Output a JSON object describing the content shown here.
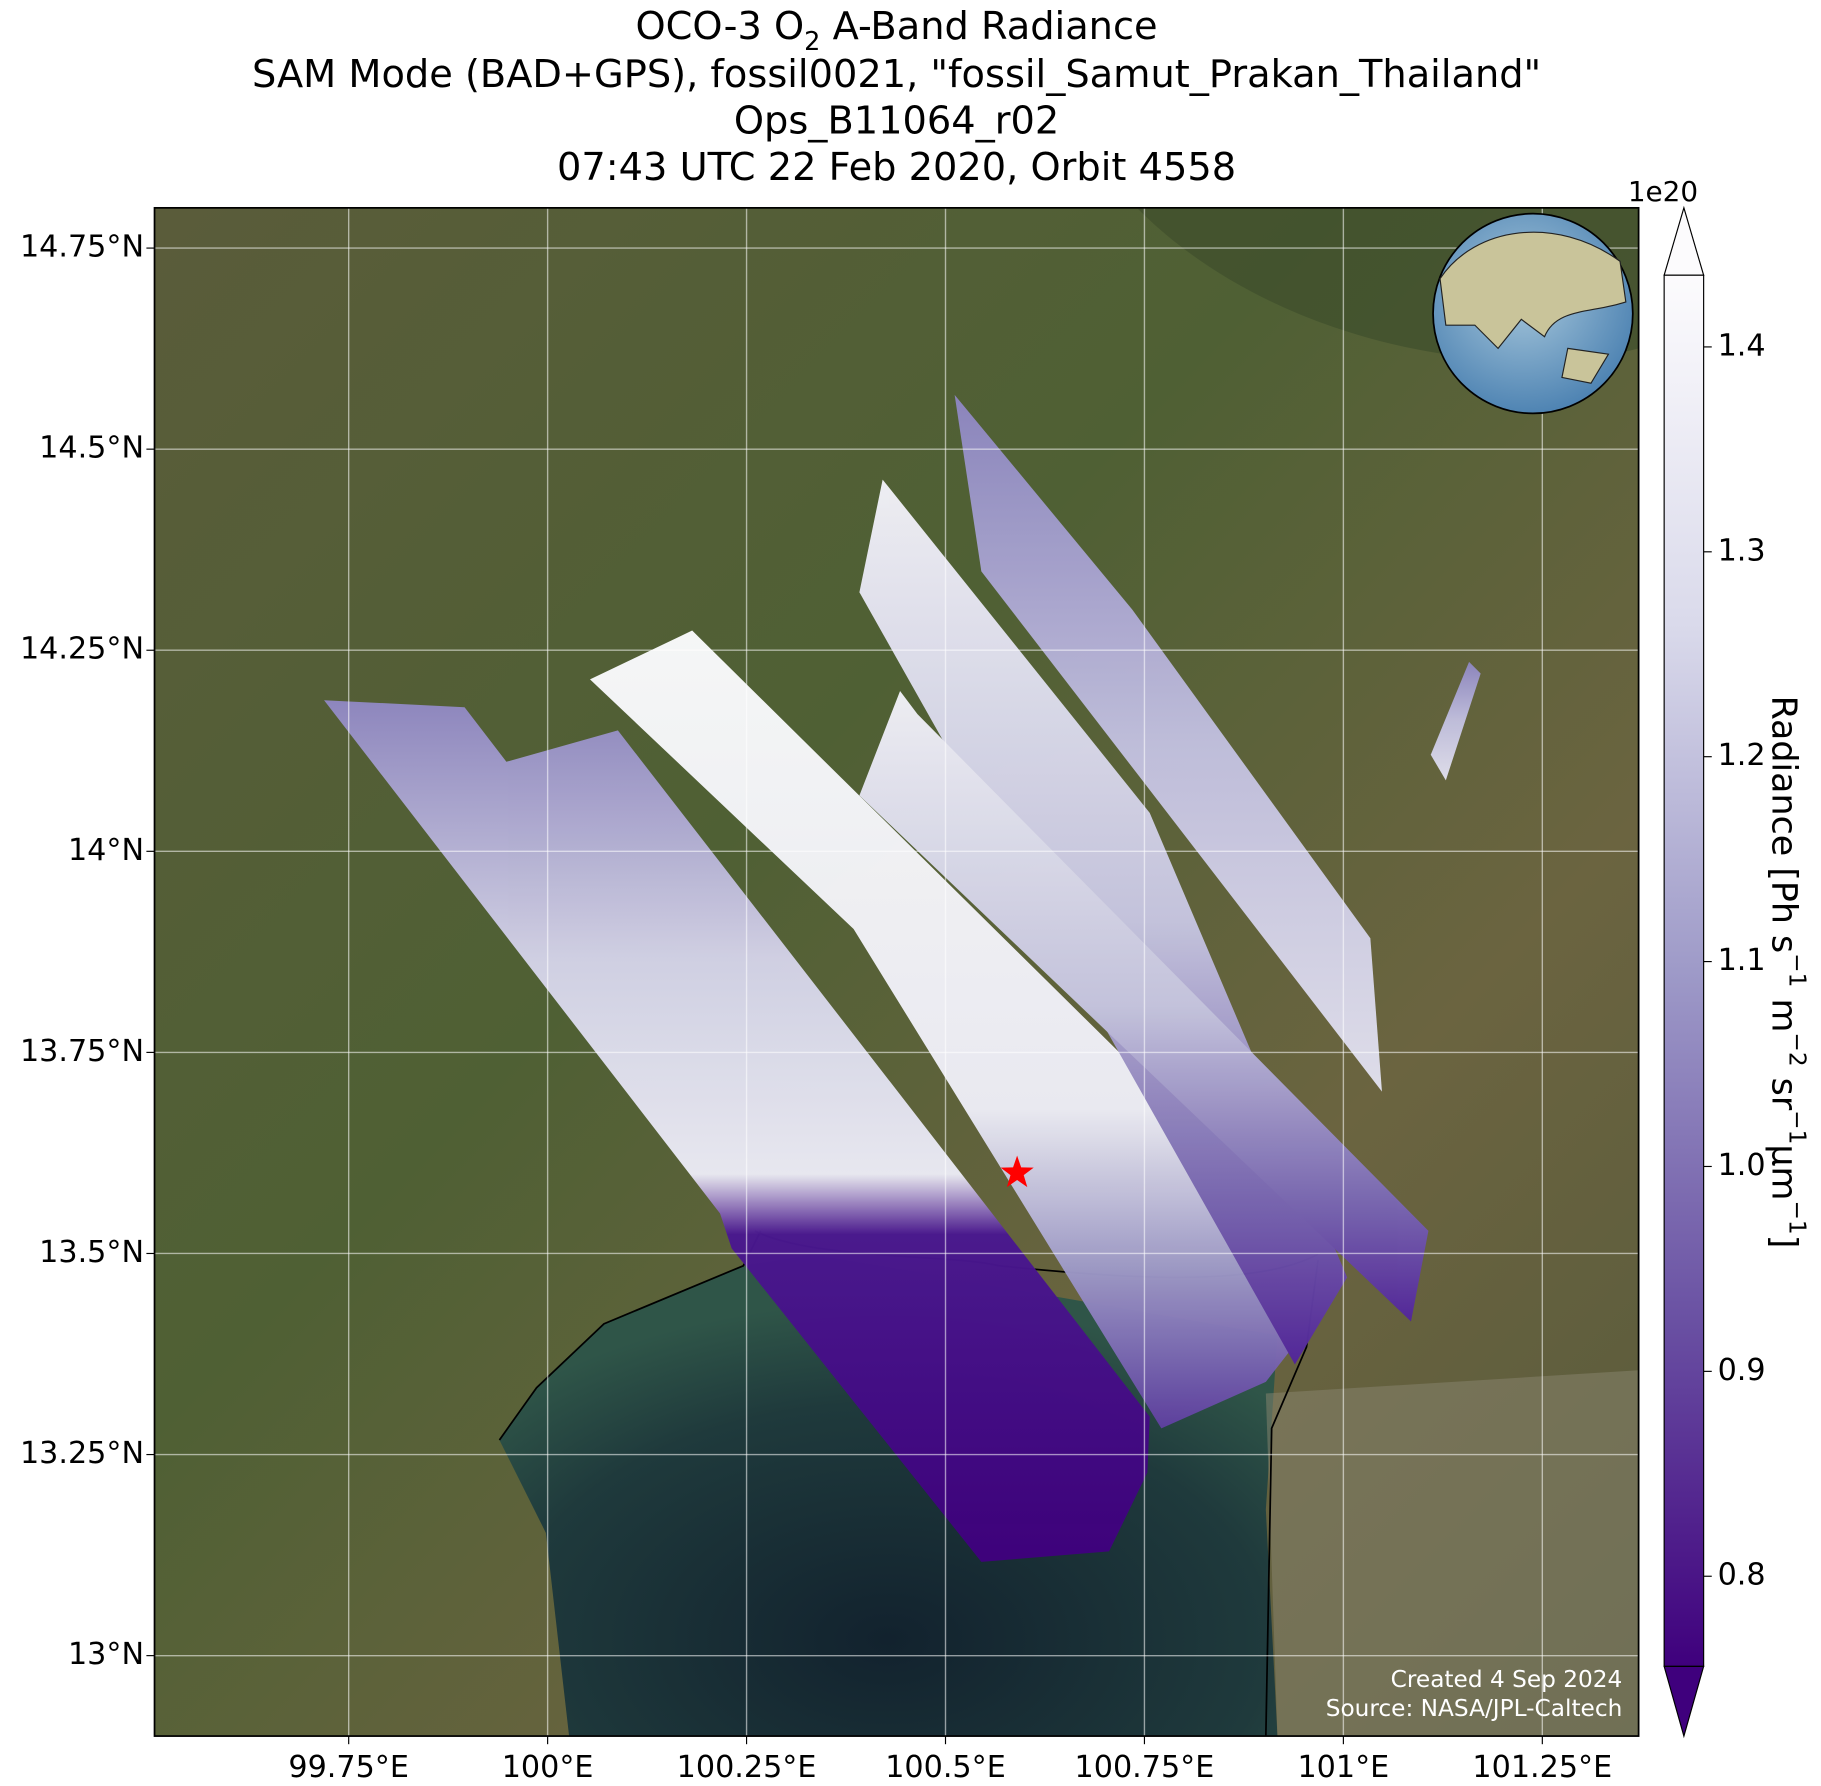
{
  "chart_data": {
    "type": "map",
    "title": {
      "main": "OCO-3 O",
      "sub": "2",
      "rest": " A-Band Radiance"
    },
    "subtitles": [
      "SAM Mode (BAD+GPS), fossil0021, \"fossil_Samut_Prakan_Thailand\"",
      "Ops_B11064_r02",
      "07:43 UTC 22 Feb 2020, Orbit 4558"
    ],
    "xlim": [
      99.506,
      101.371
    ],
    "ylim": [
      12.9,
      14.8
    ],
    "xticks": [
      {
        "value": 99.75,
        "label": "99.75°E"
      },
      {
        "value": 100,
        "label": "100°E"
      },
      {
        "value": 100.25,
        "label": "100.25°E"
      },
      {
        "value": 100.5,
        "label": "100.5°E"
      },
      {
        "value": 100.75,
        "label": "100.75°E"
      },
      {
        "value": 101,
        "label": "101°E"
      },
      {
        "value": 101.25,
        "label": "101.25°E"
      }
    ],
    "yticks": [
      {
        "value": 13,
        "label": "13°N"
      },
      {
        "value": 13.25,
        "label": "13.25°N"
      },
      {
        "value": 13.5,
        "label": "13.5°N"
      },
      {
        "value": 13.75,
        "label": "13.75°N"
      },
      {
        "value": 14,
        "label": "14°N"
      },
      {
        "value": 14.25,
        "label": "14.25°N"
      },
      {
        "value": 14.5,
        "label": "14.5°N"
      },
      {
        "value": 14.75,
        "label": "14.75°N"
      }
    ],
    "grid": true,
    "site": {
      "lon": 100.59,
      "lat": 13.6,
      "color": "#ff0000"
    },
    "colorbar": {
      "label_parts": [
        "Radiance [Ph s",
        "−1",
        " m",
        "−2",
        " sr",
        "−1",
        "μm",
        "−1",
        "]"
      ],
      "multiplier": "1e20",
      "clim": [
        0.756,
        1.435
      ],
      "ticks": [
        0.8,
        0.9,
        {
          "value": 1.0,
          "label": "1.0"
        },
        1.1,
        1.2,
        1.3,
        1.4
      ]
    },
    "credits": [
      "Created 4 Sep 2024",
      "Source: NASA/JPL-Caltech"
    ]
  }
}
